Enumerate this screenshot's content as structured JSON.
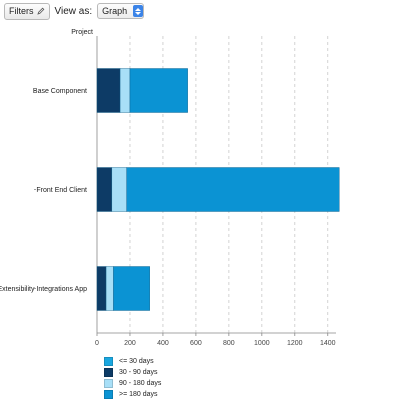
{
  "toolbar": {
    "filters_label": "Filters",
    "filters_icon": "pencil-icon",
    "viewas_label": "View as:",
    "view_selected": "Graph"
  },
  "chart_data": {
    "type": "bar",
    "orientation": "horizontal",
    "stacked": true,
    "ylabel": "Project",
    "categories": [
      "Base Component",
      "Front   End Client",
      "Extensibility Integrations  App"
    ],
    "xlim": [
      0,
      1450
    ],
    "xticks": [
      0,
      200,
      400,
      600,
      800,
      1000,
      1200,
      1400
    ],
    "grid": "vertical dashed",
    "legend_position": "bottom-left",
    "series": [
      {
        "name": "30 - 90 days",
        "color": "#0d3b66",
        "values": [
          140,
          90,
          55
        ]
      },
      {
        "name": "90 - 180 days",
        "color": "#a8dff7",
        "values": [
          60,
          90,
          45
        ]
      },
      {
        "name": ">= 180 days",
        "color": "#0b93d3",
        "values": [
          350,
          1290,
          220
        ]
      }
    ],
    "legend": [
      {
        "name": "<= 30 days",
        "color": "#1aa7e0"
      },
      {
        "name": "30 - 90 days",
        "color": "#0d3b66"
      },
      {
        "name": "90 - 180 days",
        "color": "#a8dff7"
      },
      {
        "name": ">= 180 days",
        "color": "#0b93d3"
      }
    ]
  }
}
